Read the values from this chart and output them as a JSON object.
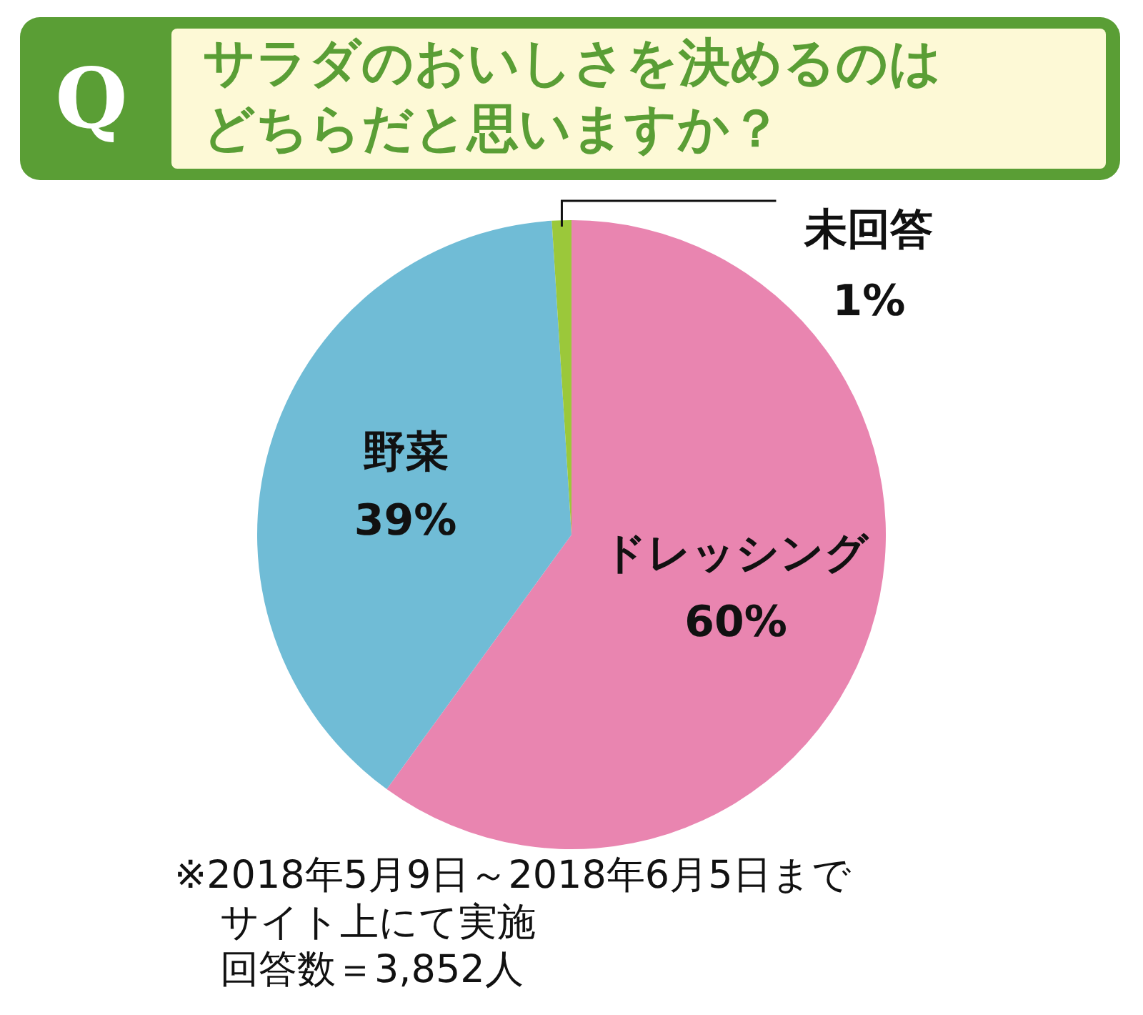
{
  "chart_data": {
    "type": "pie",
    "title": "サラダのおいしさを決めるのはどちらだと思いますか？",
    "categories": [
      "ドレッシング",
      "野菜",
      "未回答"
    ],
    "values": [
      60,
      39,
      1
    ],
    "colors": [
      "#e985b0",
      "#70bcd6",
      "#9bc83a"
    ],
    "value_labels": [
      "60%",
      "39%",
      "1%"
    ],
    "legend": false,
    "annotations": [
      "Q",
      "※2018年5月9日～2018年6月5日まで",
      "サイト上にて実施",
      "回答数＝3,852人"
    ]
  }
}
